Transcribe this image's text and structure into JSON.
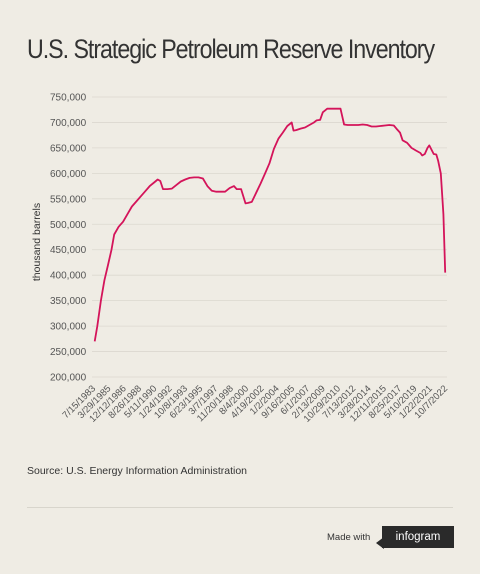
{
  "title": "U.S. Strategic Petroleum Reserve Inventory",
  "source": "Source: U.S. Energy Information Administration",
  "footer": {
    "made_with": "Made with",
    "brand": "infogram"
  },
  "colors": {
    "line": "#d4145a",
    "background": "#efece4",
    "grid": "#dcd8cf",
    "text": "#555555"
  },
  "chart_data": {
    "type": "line",
    "title": "U.S. Strategic Petroleum Reserve Inventory",
    "xlabel": "",
    "ylabel": "thousand barrels",
    "ylim": [
      200000,
      750000
    ],
    "yticks": [
      750000,
      700000,
      650000,
      600000,
      550000,
      500000,
      450000,
      400000,
      350000,
      300000,
      250000,
      200000
    ],
    "ytick_labels": [
      "750,000",
      "700,000",
      "650,000",
      "600,000",
      "550,000",
      "500,000",
      "450,000",
      "400,000",
      "350,000",
      "300,000",
      "250,000",
      "200,000"
    ],
    "xtick_labels": [
      "7/15/1983",
      "3/29/1985",
      "12/12/1986",
      "8/26/1988",
      "5/11/1990",
      "1/24/1992",
      "10/8/1993",
      "6/23/1995",
      "3/7/1997",
      "11/20/1998",
      "8/4/2000",
      "4/19/2002",
      "1/2/2004",
      "9/16/2005",
      "6/1/2007",
      "2/13/2009",
      "10/29/2010",
      "7/13/2012",
      "3/28/2014",
      "12/11/2015",
      "8/25/2017",
      "5/10/2019",
      "1/22/2021",
      "10/7/2022"
    ],
    "grid": "horizontal",
    "legend": "none",
    "series": [
      {
        "x": [
          1983.3,
          1983.6,
          1984.0,
          1984.4,
          1984.8,
          1985.2,
          1985.5,
          1986.0,
          1986.5,
          1987.0,
          1987.5,
          1988.0,
          1988.5,
          1989.0,
          1989.5,
          1990.0,
          1990.4,
          1990.7,
          1991.0,
          1991.5,
          1992.0,
          1992.5,
          1993.0,
          1993.5,
          1994.0,
          1994.5,
          1995.0,
          1995.5,
          1996.0,
          1996.5,
          1997.0,
          1997.5,
          1998.0,
          1998.5,
          1999.0,
          1999.3,
          1999.8,
          2000.3,
          2000.6,
          2001.0,
          2001.5,
          2002.0,
          2002.5,
          2003.0,
          2003.5,
          2004.0,
          2004.5,
          2005.0,
          2005.5,
          2005.7,
          2006.0,
          2006.5,
          2007.0,
          2007.5,
          2008.0,
          2008.3,
          2008.7,
          2009.0,
          2009.5,
          2010.0,
          2010.5,
          2011.0,
          2011.4,
          2011.8,
          2012.5,
          2013.0,
          2013.5,
          2014.0,
          2014.5,
          2015.0,
          2015.5,
          2016.0,
          2016.5,
          2017.0,
          2017.3,
          2017.7,
          2018.0,
          2018.5,
          2019.0,
          2019.5,
          2020.0,
          2020.2,
          2020.5,
          2020.8,
          2021.0,
          2021.5,
          2021.8,
          2022.0,
          2022.3,
          2022.6,
          2022.8
        ],
        "y": [
          270000,
          300000,
          350000,
          390000,
          420000,
          450000,
          480000,
          495000,
          505000,
          520000,
          535000,
          545000,
          555000,
          565000,
          575000,
          582000,
          588000,
          585000,
          569000,
          569000,
          570000,
          577000,
          584000,
          588000,
          591000,
          592000,
          592000,
          590000,
          575000,
          566000,
          564000,
          564000,
          564000,
          571000,
          575000,
          569000,
          569000,
          541000,
          542000,
          544000,
          562000,
          580000,
          600000,
          620000,
          648000,
          668000,
          680000,
          693000,
          700000,
          684000,
          685000,
          688000,
          690000,
          695000,
          700000,
          704000,
          705000,
          720000,
          727000,
          727000,
          727000,
          727000,
          696000,
          695000,
          695000,
          695000,
          696000,
          695000,
          692000,
          692000,
          693000,
          694000,
          695000,
          694000,
          688000,
          680000,
          665000,
          660000,
          650000,
          645000,
          640000,
          635000,
          638000,
          650000,
          655000,
          638000,
          637000,
          625000,
          600000,
          520000,
          405000
        ]
      }
    ]
  }
}
